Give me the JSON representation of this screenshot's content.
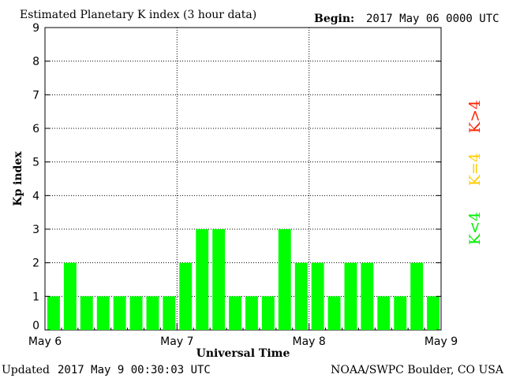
{
  "header": {
    "title": "Estimated Planetary K index (3 hour data)",
    "begin_label": "Begin:",
    "begin_value": "2017 May 06 0000 UTC"
  },
  "footer": {
    "updated_label": "Updated",
    "updated_value": "2017 May  9 00:30:03 UTC",
    "source": "NOAA/SWPC Boulder, CO USA"
  },
  "legend": {
    "low": "K<4",
    "mid": "K=4",
    "high": "K>4",
    "colors": {
      "low": "#00ff00",
      "mid": "#ffcc00",
      "high": "#ff2200"
    }
  },
  "chart_data": {
    "type": "bar",
    "title": "Estimated Planetary K index (3 hour data)",
    "xlabel": "Universal Time",
    "ylabel": "Kp index",
    "ylim": [
      0,
      9
    ],
    "yticks": [
      0,
      1,
      2,
      3,
      4,
      5,
      6,
      7,
      8,
      9
    ],
    "x_tick_labels": [
      "May 6",
      "May 7",
      "May 8",
      "May 9"
    ],
    "interval_hours": 3,
    "values": [
      1,
      2,
      1,
      1,
      1,
      1,
      1,
      1,
      2,
      3,
      3,
      1,
      1,
      1,
      3,
      2,
      2,
      1,
      2,
      2,
      1,
      1,
      2,
      1
    ],
    "bar_color": "#00ff00",
    "grid": true
  }
}
